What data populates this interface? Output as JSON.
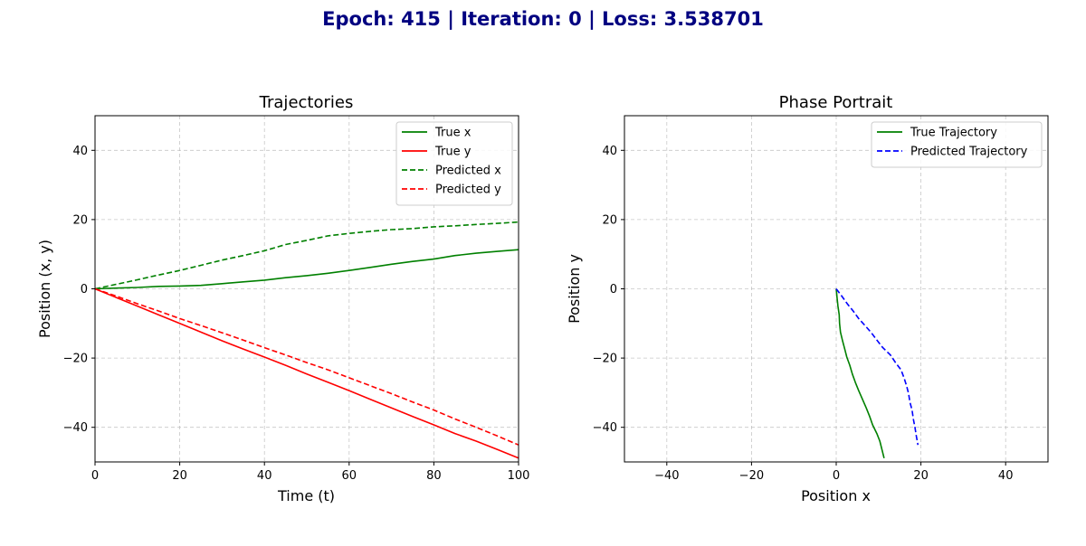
{
  "suptitle": "Epoch: 415 | Iteration: 0 | Loss: 3.538701",
  "chart_data": [
    {
      "type": "line",
      "title": "Trajectories",
      "xlabel": "Time (t)",
      "ylabel": "Position (x, y)",
      "xlim": [
        0,
        100
      ],
      "ylim": [
        -50,
        50
      ],
      "xticks": [
        0,
        20,
        40,
        60,
        80,
        100
      ],
      "yticks": [
        -40,
        -20,
        0,
        20,
        40
      ],
      "xtick_labels": [
        "0",
        "20",
        "40",
        "60",
        "80",
        "100"
      ],
      "ytick_labels": [
        "−40",
        "−20",
        "0",
        "20",
        "40"
      ],
      "grid": true,
      "legend": "top-right",
      "x": [
        0,
        5,
        10,
        15,
        20,
        25,
        30,
        35,
        40,
        45,
        50,
        55,
        60,
        65,
        70,
        75,
        80,
        85,
        90,
        95,
        100
      ],
      "series": [
        {
          "name": "True x",
          "color": "#008000",
          "style": "solid",
          "values": [
            0,
            0.2,
            0.4,
            0.7,
            0.8,
            1.0,
            1.5,
            2.0,
            2.5,
            3.2,
            3.8,
            4.5,
            5.3,
            6.2,
            7.1,
            7.9,
            8.6,
            9.6,
            10.3,
            10.8,
            11.3
          ]
        },
        {
          "name": "True y",
          "color": "#ff0000",
          "style": "solid",
          "values": [
            0,
            -2.5,
            -5.0,
            -7.5,
            -10.0,
            -12.5,
            -15.0,
            -17.4,
            -19.7,
            -22.1,
            -24.6,
            -27.0,
            -29.4,
            -31.9,
            -34.4,
            -36.9,
            -39.3,
            -41.8,
            -44.0,
            -46.4,
            -48.9
          ]
        },
        {
          "name": "Predicted x",
          "color": "#008000",
          "style": "dashed",
          "values": [
            0,
            1.3,
            2.6,
            4.0,
            5.3,
            6.8,
            8.3,
            9.6,
            11.0,
            12.8,
            14.0,
            15.3,
            16.0,
            16.6,
            17.1,
            17.4,
            17.9,
            18.2,
            18.6,
            18.9,
            19.3
          ]
        },
        {
          "name": "Predicted y",
          "color": "#ff0000",
          "style": "dashed",
          "values": [
            0,
            -2.1,
            -4.3,
            -6.4,
            -8.6,
            -10.6,
            -12.7,
            -14.8,
            -17.0,
            -19.1,
            -21.3,
            -23.4,
            -25.7,
            -28.0,
            -30.3,
            -32.7,
            -35.0,
            -37.6,
            -40.0,
            -42.5,
            -45.1
          ]
        }
      ]
    },
    {
      "type": "line",
      "title": "Phase Portrait",
      "xlabel": "Position x",
      "ylabel": "Position y",
      "xlim": [
        -50,
        50
      ],
      "ylim": [
        -50,
        50
      ],
      "xticks": [
        -40,
        -20,
        0,
        20,
        40
      ],
      "yticks": [
        -40,
        -20,
        0,
        20,
        40
      ],
      "xtick_labels": [
        "−40",
        "−20",
        "0",
        "20",
        "40"
      ],
      "ytick_labels": [
        "−40",
        "−20",
        "0",
        "20",
        "40"
      ],
      "grid": true,
      "legend": "top-right",
      "series": [
        {
          "name": "True Trajectory",
          "color": "#008000",
          "style": "solid",
          "x": [
            0,
            0.2,
            0.4,
            0.7,
            0.8,
            1.0,
            1.5,
            2.0,
            2.5,
            3.2,
            3.8,
            4.5,
            5.3,
            6.2,
            7.1,
            7.9,
            8.6,
            9.6,
            10.3,
            10.8,
            11.3
          ],
          "y": [
            0,
            -2.5,
            -5.0,
            -7.5,
            -10.0,
            -12.5,
            -15.0,
            -17.4,
            -19.7,
            -22.1,
            -24.6,
            -27.0,
            -29.4,
            -31.9,
            -34.4,
            -36.9,
            -39.3,
            -41.8,
            -44.0,
            -46.4,
            -48.9
          ]
        },
        {
          "name": "Predicted Trajectory",
          "color": "#0000ff",
          "style": "dashed",
          "x": [
            0,
            1.3,
            2.6,
            4.0,
            5.3,
            6.8,
            8.3,
            9.6,
            11.0,
            12.8,
            14.0,
            15.3,
            16.0,
            16.6,
            17.1,
            17.4,
            17.9,
            18.2,
            18.6,
            18.9,
            19.3
          ],
          "y": [
            0,
            -2.1,
            -4.3,
            -6.4,
            -8.6,
            -10.6,
            -12.7,
            -14.8,
            -17.0,
            -19.1,
            -21.3,
            -23.4,
            -25.7,
            -28.0,
            -30.3,
            -32.7,
            -35.0,
            -37.6,
            -40.0,
            -42.5,
            -45.1
          ]
        }
      ]
    }
  ]
}
